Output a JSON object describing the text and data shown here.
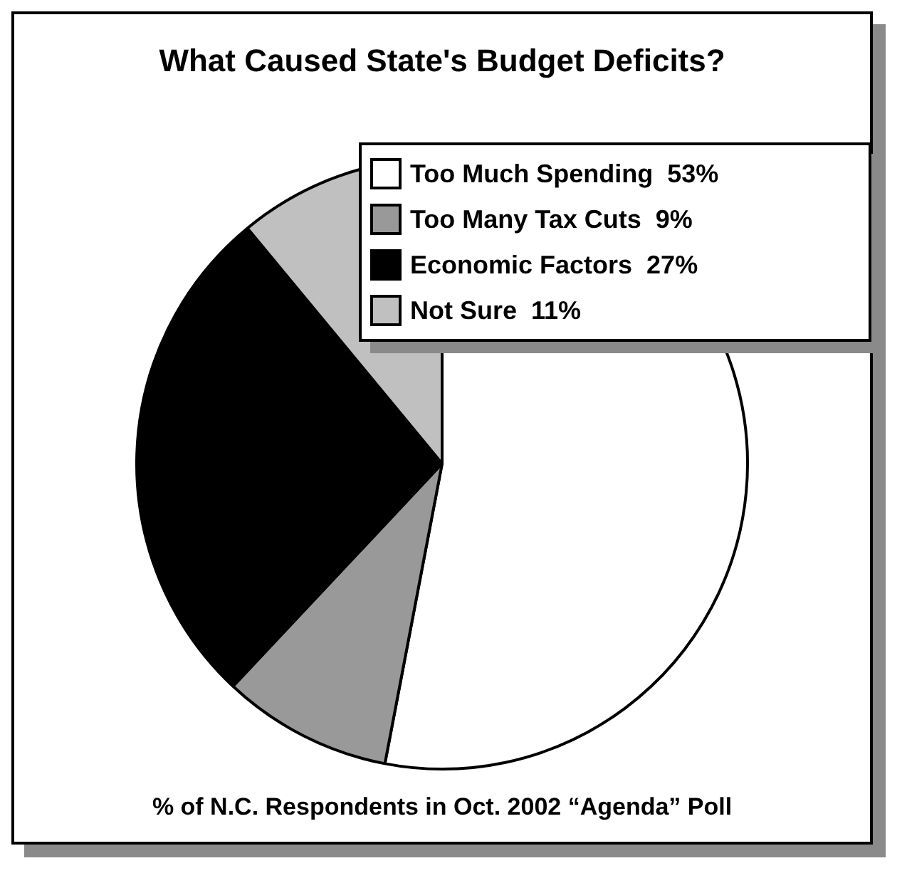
{
  "chart_data": {
    "type": "pie",
    "title": "What Caused State's Budget Deficits?",
    "categories": [
      "Too Much Spending",
      "Too Many Tax Cuts",
      "Economic Factors",
      "Not Sure"
    ],
    "values": [
      53,
      9,
      27,
      11
    ],
    "value_labels": [
      "53%",
      "9%",
      "27%",
      "11%"
    ],
    "colors": [
      "#ffffff",
      "#999999",
      "#000000",
      "#c0c0c0"
    ],
    "legend": "top right",
    "annotations": [
      "% of N.C. Respondents in Oct. 2002 “Agenda” Poll"
    ]
  }
}
